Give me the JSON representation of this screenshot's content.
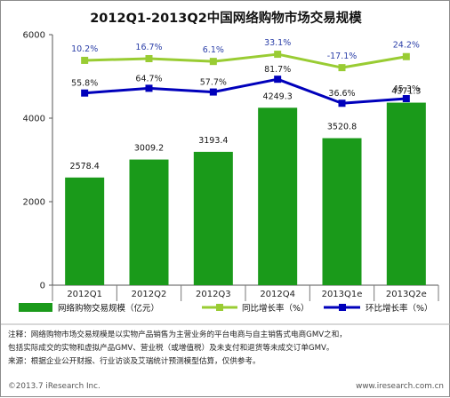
{
  "chart_data": {
    "type": "bar",
    "title": "2012Q1-2013Q2中国网络购物市场交易规模",
    "categories": [
      "2012Q1",
      "2012Q2",
      "2012Q3",
      "2012Q4",
      "2013Q1e",
      "2013Q2e"
    ],
    "ylim": [
      0,
      6000
    ],
    "yticks": [
      "0",
      "2000",
      "4000",
      "6000"
    ],
    "grid": false,
    "legend_position": "bottom",
    "series": [
      {
        "name": "网络购物交易规模（亿元）",
        "kind": "bar",
        "color": "#1a9a1a",
        "values": [
          2578.4,
          3009.2,
          3193.4,
          4249.3,
          3520.8,
          4371.3
        ],
        "labels": [
          "2578.4",
          "3009.2",
          "3193.4",
          "4249.3",
          "3520.8",
          "4371.3"
        ]
      },
      {
        "name": "同比增长率（%）",
        "kind": "line",
        "color": "#99cc33",
        "values": [
          10.2,
          16.7,
          6.1,
          33.1,
          -17.1,
          24.2
        ],
        "labels": [
          "10.2%",
          "16.7%",
          "6.1%",
          "33.1%",
          "-17.1%",
          "24.2%"
        ]
      },
      {
        "name": "环比增长率（%）",
        "kind": "line",
        "color": "#0000bb",
        "values": [
          55.8,
          64.7,
          57.7,
          81.7,
          36.6,
          45.3
        ],
        "labels": [
          "55.8%",
          "64.7%",
          "57.7%",
          "81.7%",
          "36.6%",
          "45.3%"
        ]
      }
    ]
  },
  "notes": [
    "注释：网络购物市场交易规模是以实物产品销售为主营业务的平台电商与自主销售式电商GMV之和，",
    "包括实际成交的实物和虚拟产品GMV、营业税（或增值税）及未支付和退货等未成交订单GMV。",
    "来源：根据企业公开财报、行业访谈及艾瑞统计预测模型估算，仅供参考。"
  ],
  "footer": {
    "copyright": "©2013.7 iResearch Inc.",
    "website": "www.iresearch.com.cn"
  }
}
